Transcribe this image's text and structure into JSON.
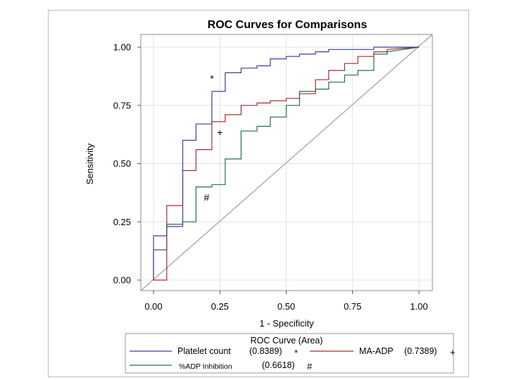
{
  "chart_data": {
    "type": "line",
    "title": "ROC Curves for Comparisons",
    "xlabel": "1 - Specificity",
    "ylabel": "Sensitivity",
    "xlim": [
      0,
      1
    ],
    "ylim": [
      0,
      1
    ],
    "xticks": [
      "0.00",
      "0.25",
      "0.50",
      "0.75",
      "1.00"
    ],
    "yticks": [
      "0.00",
      "0.25",
      "0.50",
      "0.75",
      "1.00"
    ],
    "grid": true,
    "legend_title": "ROC Curve (Area)",
    "legend_position": "bottom",
    "reference_line": {
      "x": [
        0,
        1
      ],
      "y": [
        0,
        1
      ],
      "color": "#a0a0a0"
    },
    "series": [
      {
        "name": "Platelet count",
        "area": "(0.8389)",
        "marker": "*",
        "color": "#3f3f9c",
        "x": [
          0,
          0,
          0.05,
          0.05,
          0.11,
          0.11,
          0.16,
          0.16,
          0.22,
          0.22,
          0.27,
          0.27,
          0.33,
          0.33,
          0.39,
          0.39,
          0.44,
          0.44,
          0.5,
          0.5,
          0.55,
          0.55,
          0.61,
          0.61,
          0.66,
          0.66,
          0.72,
          0.72,
          0.77,
          0.77,
          0.83,
          0.83,
          0.88,
          0.88,
          1
        ],
        "y": [
          0,
          0.19,
          0.19,
          0.23,
          0.23,
          0.6,
          0.6,
          0.67,
          0.67,
          0.81,
          0.81,
          0.89,
          0.89,
          0.91,
          0.91,
          0.92,
          0.92,
          0.95,
          0.95,
          0.96,
          0.96,
          0.97,
          0.97,
          0.98,
          0.98,
          0.99,
          0.99,
          0.99,
          0.99,
          0.99,
          0.99,
          1,
          1,
          1,
          1
        ]
      },
      {
        "name": "MA-ADP",
        "area": "(0.7389)",
        "marker": "+",
        "color": "#a03030",
        "x": [
          0,
          0.05,
          0.05,
          0.11,
          0.11,
          0.16,
          0.16,
          0.22,
          0.22,
          0.27,
          0.27,
          0.33,
          0.33,
          0.39,
          0.39,
          0.44,
          0.44,
          0.5,
          0.5,
          0.55,
          0.55,
          0.61,
          0.61,
          0.66,
          0.66,
          0.72,
          0.72,
          0.77,
          0.77,
          0.83,
          0.83,
          0.88,
          0.88,
          1
        ],
        "y": [
          0,
          0,
          0.32,
          0.32,
          0.47,
          0.47,
          0.56,
          0.56,
          0.68,
          0.68,
          0.71,
          0.71,
          0.75,
          0.75,
          0.76,
          0.76,
          0.77,
          0.77,
          0.78,
          0.78,
          0.8,
          0.8,
          0.86,
          0.86,
          0.9,
          0.9,
          0.93,
          0.93,
          0.96,
          0.96,
          0.98,
          0.98,
          0.99,
          1
        ]
      },
      {
        "name": "%ADP Inhibition",
        "area": "(0.6618)",
        "marker": "#",
        "color": "#1f6f5f",
        "x": [
          0,
          0,
          0.05,
          0.05,
          0.11,
          0.11,
          0.16,
          0.16,
          0.22,
          0.22,
          0.27,
          0.27,
          0.33,
          0.33,
          0.39,
          0.39,
          0.44,
          0.44,
          0.5,
          0.5,
          0.55,
          0.55,
          0.61,
          0.61,
          0.66,
          0.66,
          0.72,
          0.72,
          0.77,
          0.77,
          0.83,
          0.83,
          0.88,
          0.88,
          1
        ],
        "y": [
          0,
          0.13,
          0.13,
          0.24,
          0.24,
          0.25,
          0.25,
          0.4,
          0.4,
          0.41,
          0.41,
          0.52,
          0.52,
          0.64,
          0.64,
          0.66,
          0.66,
          0.7,
          0.7,
          0.75,
          0.75,
          0.81,
          0.81,
          0.82,
          0.82,
          0.85,
          0.85,
          0.88,
          0.88,
          0.9,
          0.9,
          0.97,
          0.97,
          0.98,
          1
        ]
      }
    ],
    "annotations": [
      {
        "text": "*",
        "x": 0.22,
        "y": 0.85
      },
      {
        "text": "+",
        "x": 0.25,
        "y": 0.62
      },
      {
        "text": "#",
        "x": 0.2,
        "y": 0.34
      }
    ]
  }
}
